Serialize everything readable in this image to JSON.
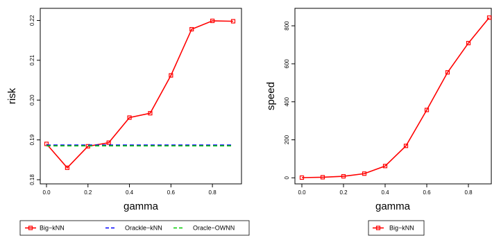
{
  "chart_data": [
    {
      "type": "line",
      "xlabel": "gamma",
      "ylabel": "risk",
      "xlim": [
        0,
        0.9
      ],
      "ylim": [
        0.18,
        0.222
      ],
      "x_ticks": [
        "0.0",
        "0.2",
        "0.4",
        "0.6",
        "0.8"
      ],
      "y_ticks": [
        "0.18",
        "0.19",
        "0.20",
        "0.21",
        "0.22"
      ],
      "x": [
        0.0,
        0.1,
        0.2,
        0.3,
        0.4,
        0.5,
        0.6,
        0.7,
        0.8,
        0.9
      ],
      "series": [
        {
          "name": "Big−kNN",
          "values": [
            0.189,
            0.183,
            0.1884,
            0.1893,
            0.1956,
            0.1967,
            0.2062,
            0.2178,
            0.2199,
            0.2198
          ],
          "color": "#ff0000",
          "style": "solid",
          "marker": "square"
        },
        {
          "name": "Orackle−kNN",
          "values": [
            0.1887,
            0.1887,
            0.1887,
            0.1887,
            0.1887,
            0.1887,
            0.1887,
            0.1887,
            0.1887,
            0.1887
          ],
          "color": "#0000ff",
          "style": "dashed",
          "marker": "none"
        },
        {
          "name": "Oracle−OWNN",
          "values": [
            0.1885,
            0.1885,
            0.1885,
            0.1885,
            0.1885,
            0.1885,
            0.1885,
            0.1885,
            0.1885,
            0.1885
          ],
          "color": "#00cc00",
          "style": "dashed",
          "marker": "none"
        }
      ],
      "legend": [
        "Big−kNN",
        "Orackle−kNN",
        "Oracle−OWNN"
      ],
      "legend_position": "bottom",
      "grid": false
    },
    {
      "type": "line",
      "xlabel": "gamma",
      "ylabel": "speed",
      "xlim": [
        0,
        0.9
      ],
      "ylim": [
        -10,
        870
      ],
      "x_ticks": [
        "0.0",
        "0.2",
        "0.4",
        "0.6",
        "0.8"
      ],
      "y_ticks": [
        "0",
        "200",
        "400",
        "600",
        "800"
      ],
      "x": [
        0.0,
        0.1,
        0.2,
        0.3,
        0.4,
        0.5,
        0.6,
        0.7,
        0.8,
        0.9
      ],
      "series": [
        {
          "name": "Big−kNN",
          "values": [
            1,
            3,
            8,
            22,
            62,
            168,
            357,
            555,
            709,
            843
          ],
          "color": "#ff0000",
          "style": "solid",
          "marker": "square"
        }
      ],
      "legend": [
        "Big−kNN"
      ],
      "legend_position": "bottom",
      "grid": false
    }
  ]
}
